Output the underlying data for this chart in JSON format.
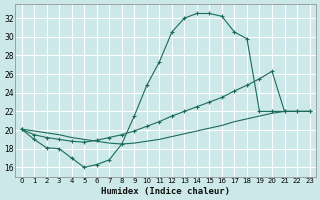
{
  "xlabel": "Humidex (Indice chaleur)",
  "background_color": "#cce8e8",
  "grid_color": "#b8d8d8",
  "line_color": "#1a6b5a",
  "xlim": [
    -0.5,
    23.5
  ],
  "ylim": [
    15.0,
    33.5
  ],
  "xticks": [
    0,
    1,
    2,
    3,
    4,
    5,
    6,
    7,
    8,
    9,
    10,
    11,
    12,
    13,
    14,
    15,
    16,
    17,
    18,
    19,
    20,
    21,
    22,
    23
  ],
  "yticks": [
    16,
    18,
    20,
    22,
    24,
    26,
    28,
    30,
    32
  ],
  "line1_x": [
    0,
    1,
    2,
    3,
    4,
    5,
    6,
    7,
    8,
    9,
    10,
    11,
    12,
    13,
    14,
    15,
    16,
    17,
    18,
    19,
    20,
    21,
    22,
    23
  ],
  "line1_y": [
    20.1,
    19.0,
    18.1,
    18.0,
    17.0,
    16.0,
    16.3,
    16.8,
    18.5,
    21.5,
    24.8,
    27.3,
    30.5,
    32.0,
    32.5,
    32.5,
    32.2,
    30.5,
    29.8,
    22.0,
    22.0,
    22.0,
    22.0,
    22.0
  ],
  "line2_x": [
    0,
    1,
    2,
    3,
    4,
    5,
    6,
    7,
    8,
    9,
    10,
    11,
    12,
    13,
    14,
    15,
    16,
    17,
    18,
    19,
    20,
    21,
    22,
    23
  ],
  "line2_y": [
    20.1,
    19.5,
    19.2,
    19.0,
    18.8,
    18.7,
    18.9,
    19.2,
    19.5,
    19.9,
    20.4,
    20.9,
    21.5,
    22.0,
    22.5,
    23.0,
    23.5,
    24.2,
    24.8,
    25.5,
    26.3,
    22.0,
    22.0,
    22.0
  ],
  "line3_x": [
    0,
    1,
    2,
    3,
    4,
    5,
    6,
    7,
    8,
    9,
    10,
    11,
    12,
    13,
    14,
    15,
    16,
    17,
    18,
    19,
    20,
    21,
    22,
    23
  ],
  "line3_y": [
    20.1,
    19.9,
    19.7,
    19.5,
    19.2,
    19.0,
    18.8,
    18.6,
    18.5,
    18.6,
    18.8,
    19.0,
    19.3,
    19.6,
    19.9,
    20.2,
    20.5,
    20.9,
    21.2,
    21.5,
    21.8,
    22.0,
    22.0,
    22.0
  ]
}
